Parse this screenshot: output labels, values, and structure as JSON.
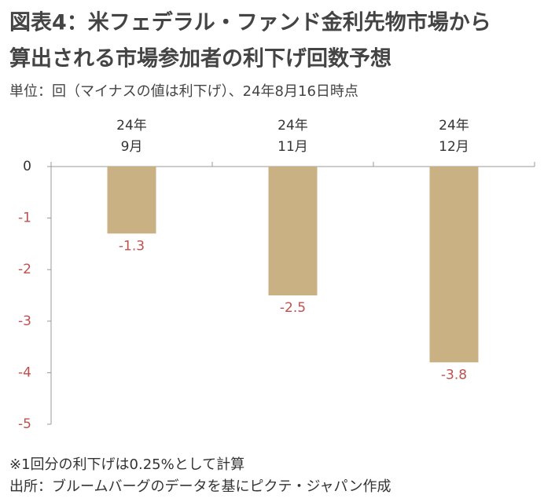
{
  "chart_data": {
    "type": "bar",
    "title": [
      "図表4：米フェデラル・ファンド金利先物市場から",
      "算出される市場参加者の利下げ回数予想"
    ],
    "subtitle": "単位：回（マイナスの値は利下げ）、24年8月16日時点",
    "categories": [
      [
        "24年",
        "9月"
      ],
      [
        "24年",
        "11月"
      ],
      [
        "24年",
        "12月"
      ]
    ],
    "values": [
      -1.3,
      -2.5,
      -3.8
    ],
    "color": "#c9b184",
    "label_color": "#c0504d",
    "ylim": [
      -5,
      0
    ],
    "yticks": [
      0,
      -1,
      -2,
      -3,
      -4,
      -5
    ],
    "notes": [
      "※1回分の利下げは0.25%として計算",
      "出所：ブルームバーグのデータを基にピクテ・ジャパン作成"
    ]
  }
}
